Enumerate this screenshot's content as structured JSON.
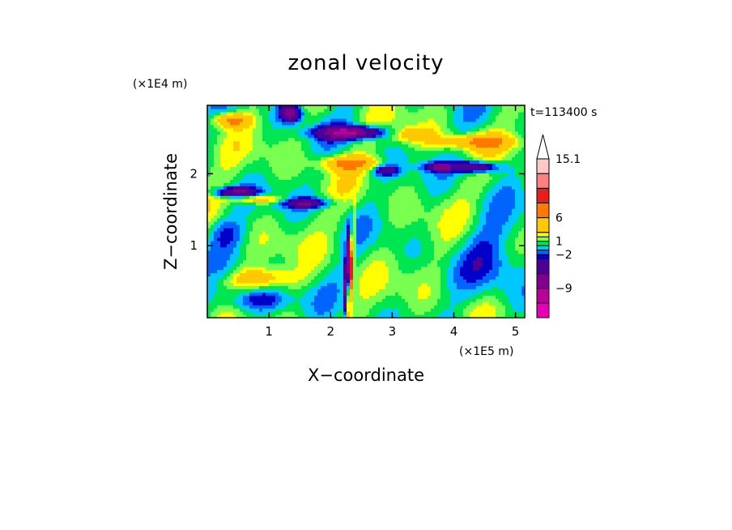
{
  "chart_data": {
    "type": "heatmap",
    "title": "zonal velocity",
    "xlabel": "X−coordinate",
    "ylabel": "Z−coordinate",
    "x_unit_label": "(×1E5 m)",
    "y_unit_label": "(×1E4 m)",
    "time_label": "t=113400 s",
    "xlim": [
      0,
      5.15
    ],
    "ylim": [
      0,
      2.95
    ],
    "x_ticks": [
      1,
      2,
      3,
      4,
      5
    ],
    "y_ticks": [
      1,
      2
    ],
    "x_tick_labels": [
      "1",
      "2",
      "3",
      "4",
      "5"
    ],
    "y_tick_labels": [
      "1",
      "2"
    ],
    "colorbar": {
      "levels": [
        -15,
        -12,
        -9,
        -6,
        -3,
        -2,
        -1,
        0,
        1,
        2,
        3,
        6,
        9,
        12,
        15.1
      ],
      "colors": [
        "#e600b4",
        "#b8009a",
        "#80008c",
        "#4b0096",
        "#0000c8",
        "#0064ff",
        "#00c8ff",
        "#00e650",
        "#78ff50",
        "#ffff00",
        "#ffc800",
        "#ff7800",
        "#e61e1e",
        "#ff8080",
        "#ffc8c8"
      ],
      "labeled_levels": [
        {
          "value": 15.1,
          "label": "15.1"
        },
        {
          "value": 6,
          "label": "6"
        },
        {
          "value": 1,
          "label": "1"
        },
        {
          "value": -2,
          "label": "−2"
        },
        {
          "value": -9,
          "label": "−9"
        }
      ],
      "extend": "max"
    },
    "grid": false
  }
}
